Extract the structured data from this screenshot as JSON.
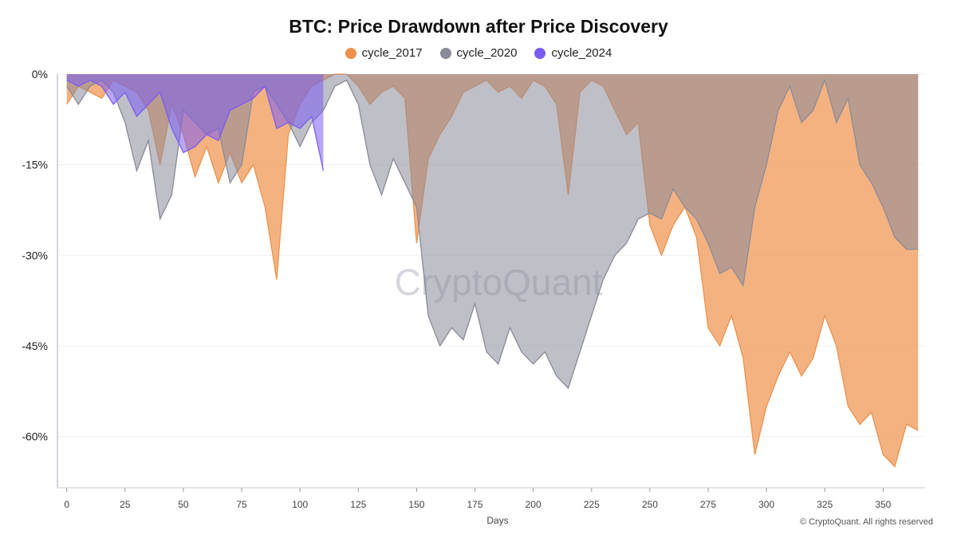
{
  "chart_data": {
    "type": "area",
    "title": "BTC: Price Drawdown after Price Discovery",
    "xlabel": "Days",
    "ylabel": "",
    "xlim": [
      -4,
      368
    ],
    "ylim": [
      -68.5,
      0
    ],
    "x_ticks": [
      0,
      25,
      50,
      75,
      100,
      125,
      150,
      175,
      200,
      225,
      250,
      275,
      300,
      325,
      350
    ],
    "y_ticks": [
      0,
      -15,
      -30,
      -45,
      -60
    ],
    "y_tick_labels": [
      "0%",
      "-15%",
      "-30%",
      "-45%",
      "-60%"
    ],
    "grid": true,
    "legend": "top-center",
    "series": [
      {
        "name": "cycle_2017",
        "color": "#f0914b",
        "step": 5,
        "values": [
          -5,
          -2,
          -3,
          -4,
          -1,
          -2,
          -3,
          -6,
          -15,
          -5,
          -10,
          -17,
          -12,
          -18,
          -13,
          -18,
          -15,
          -22,
          -34,
          -10,
          -5,
          -2,
          -1,
          0,
          0,
          -2,
          -5,
          -3,
          -2,
          -4,
          -28,
          -14,
          -10,
          -7,
          -3,
          -2,
          -1,
          -3,
          -2,
          -4,
          -1,
          -2,
          -5,
          -20,
          -3,
          -1,
          -2,
          -6,
          -10,
          -8,
          -25,
          -30,
          -25,
          -22,
          -27,
          -42,
          -45,
          -40,
          -47,
          -63,
          -55,
          -50,
          -46,
          -50,
          -47,
          -40,
          -45,
          -55,
          -58,
          -56,
          -63,
          -65,
          -58,
          -59
        ]
      },
      {
        "name": "cycle_2020",
        "color": "#8a8a99",
        "step": 5,
        "values": [
          -2,
          -5,
          -2,
          -1,
          -3,
          -8,
          -16,
          -11,
          -24,
          -20,
          -6,
          -8,
          -10,
          -9,
          -18,
          -15,
          -3,
          -2,
          -5,
          -8,
          -12,
          -8,
          -6,
          -2,
          -1,
          -5,
          -15,
          -20,
          -14,
          -18,
          -22,
          -40,
          -45,
          -42,
          -44,
          -38,
          -46,
          -48,
          -42,
          -46,
          -48,
          -46,
          -50,
          -52,
          -46,
          -40,
          -34,
          -30,
          -28,
          -24,
          -23,
          -24,
          -19,
          -22,
          -24,
          -28,
          -33,
          -32,
          -35,
          -22,
          -15,
          -6,
          -2,
          -8,
          -6,
          -1,
          -8,
          -4,
          -15,
          -18,
          -22,
          -27,
          -29,
          -29
        ]
      },
      {
        "name": "cycle_2024",
        "color": "#7b5cf0",
        "step": 5,
        "values": [
          -1,
          -2,
          -1,
          -2,
          -5,
          -3,
          -7,
          -5,
          -3,
          -9,
          -13,
          -12,
          -10,
          -11,
          -6,
          -5,
          -4,
          -2,
          -9,
          -8,
          -9,
          -7,
          -16
        ]
      }
    ]
  },
  "credit": "© CryptoQuant. All rights reserved",
  "watermark": "CryptoQuant"
}
